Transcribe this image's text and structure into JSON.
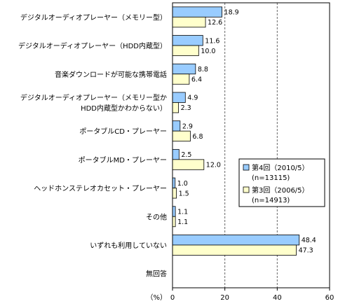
{
  "chart_data": {
    "type": "bar",
    "orientation": "horizontal",
    "categories": [
      [
        "デジタルオーディオプレーヤー（メモリー型）"
      ],
      [
        "デジタルオーディオプレーヤー（HDD内蔵型）"
      ],
      [
        "音楽ダウンロードが可能な携帯電話"
      ],
      [
        "デジタルオーディオプレーヤー（メモリー型か",
        "HDD内蔵型かわからない）"
      ],
      [
        "ポータブルCD・プレーヤー"
      ],
      [
        "ポータブルMD・プレーヤー"
      ],
      [
        "ヘッドホンステレオカセット・プレーヤー"
      ],
      [
        "その他"
      ],
      [
        "いずれも利用していない"
      ],
      [
        "無回答"
      ]
    ],
    "series": [
      {
        "name": "第4回（2010/5）",
        "sample": "(n=13115)",
        "color": "#99ccff",
        "values": [
          18.9,
          11.6,
          8.8,
          4.9,
          2.9,
          2.5,
          1.0,
          1.1,
          48.4,
          null
        ],
        "labels": [
          "18.9",
          "11.6",
          "8.8",
          "4.9",
          "2.9",
          "2.5",
          "1.0",
          "1.1",
          "48.4",
          ""
        ]
      },
      {
        "name": "第3回（2006/5）",
        "sample": "(n=14913)",
        "color": "#ffffcc",
        "values": [
          12.6,
          10.0,
          6.4,
          2.3,
          6.8,
          12.0,
          1.5,
          1.1,
          47.3,
          null
        ],
        "labels": [
          "12.6",
          "10.0",
          "6.4",
          "2.3",
          "6.8",
          "12.0",
          "1.5",
          "1.1",
          "47.3",
          ""
        ]
      }
    ],
    "xlim": [
      0,
      60
    ],
    "x_ticks": [
      0,
      20,
      40,
      60
    ],
    "unit_label": "（%）",
    "grid": "dashed vertical lines at 20 and 40",
    "legend_position": "right"
  }
}
